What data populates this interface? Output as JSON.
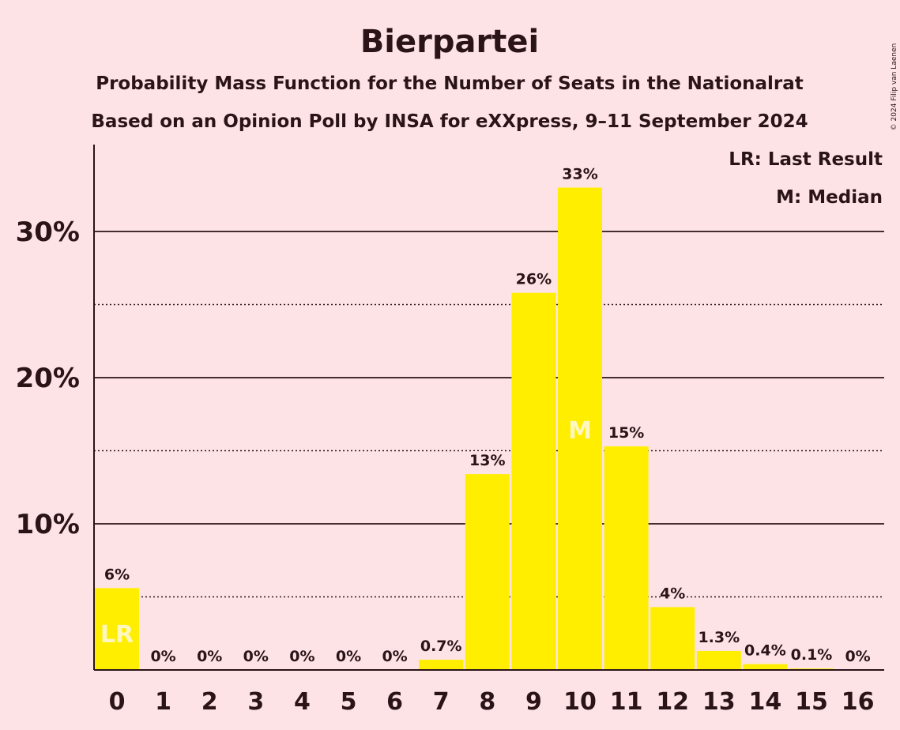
{
  "chart_data": {
    "type": "bar",
    "title": "Bierpartei",
    "subtitle": "Probability Mass Function for the Number of Seats in the Nationalrat",
    "subtitle2": "Based on an Opinion Poll by INSA for eXXpress, 9–11 September 2024",
    "copyright": "© 2024 Filip van Laenen",
    "categories": [
      "0",
      "1",
      "2",
      "3",
      "4",
      "5",
      "6",
      "7",
      "8",
      "9",
      "10",
      "11",
      "12",
      "13",
      "14",
      "15",
      "16"
    ],
    "values": [
      5.6,
      0,
      0,
      0,
      0,
      0,
      0,
      0.7,
      13.4,
      25.8,
      33.0,
      15.3,
      4.3,
      1.3,
      0.4,
      0.1,
      0
    ],
    "labels": [
      "6%",
      "0%",
      "0%",
      "0%",
      "0%",
      "0%",
      "0%",
      "0.7%",
      "13%",
      "26%",
      "33%",
      "15%",
      "4%",
      "1.3%",
      "0.4%",
      "0.1%",
      "0%"
    ],
    "ylim": [
      0,
      36
    ],
    "yticks": [
      10,
      20,
      30
    ],
    "ytick_labels": [
      "10%",
      "20%",
      "30%"
    ],
    "minor_gridlines": [
      5,
      15,
      25
    ],
    "xlabel": "",
    "ylabel": "",
    "last_result_index": 0,
    "last_result_marker": "LR",
    "median_index": 10,
    "median_marker": "M",
    "legend": {
      "placement": "top-right",
      "last_result": "LR: Last Result",
      "median": "M: Median"
    },
    "colors": {
      "bar": "#ffee00",
      "background": "#fde3e6",
      "text": "#2a1418",
      "marker": "#fff7c0"
    }
  }
}
